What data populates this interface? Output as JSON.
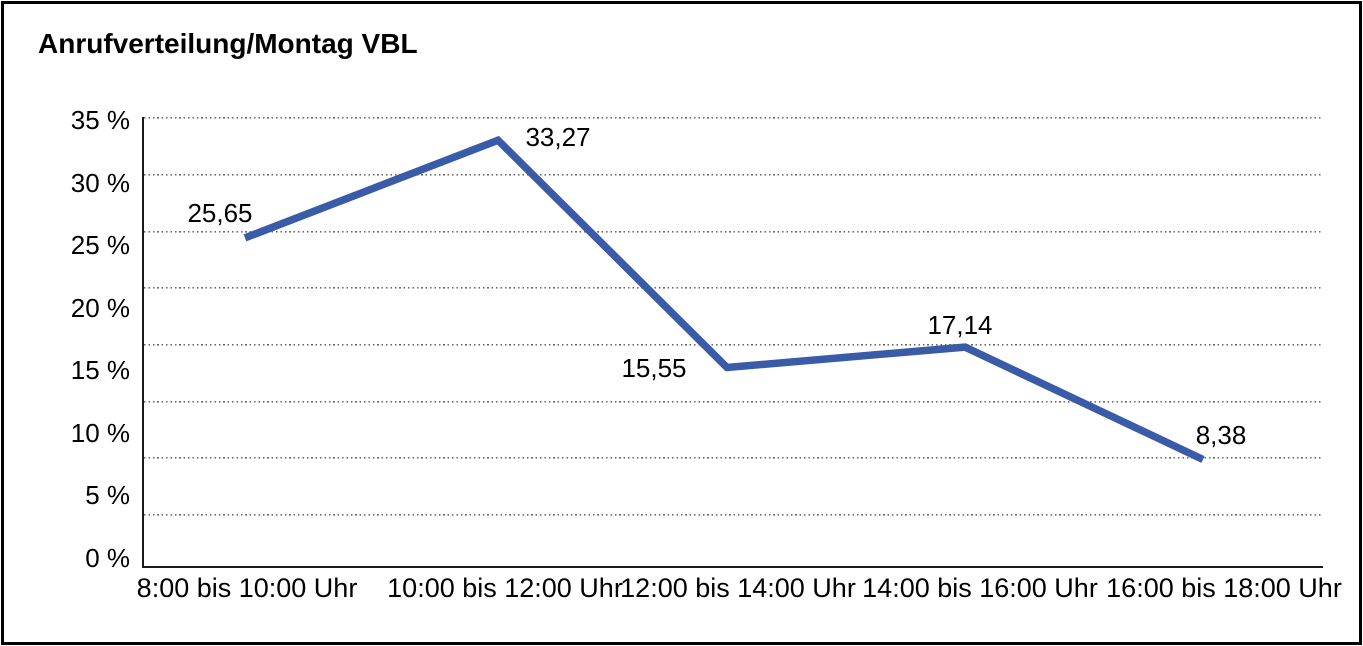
{
  "title": "Anrufverteilung/Montag VBL",
  "chart_data": {
    "type": "line",
    "title": "Anrufverteilung/Montag VBL",
    "categories": [
      "8:00 bis 10:00 Uhr",
      "10:00 bis 12:00 Uhr",
      "12:00 bis 14:00 Uhr",
      "14:00 bis 16:00 Uhr",
      "16:00 bis 18:00 Uhr"
    ],
    "values": [
      25.65,
      33.27,
      15.55,
      17.14,
      8.38
    ],
    "point_labels": [
      "25,65",
      "33,27",
      "15,55",
      "17,14",
      "8,38"
    ],
    "y_tick_labels": [
      "35 %",
      "30 %",
      "25 %",
      "20 %",
      "15 %",
      "10 %",
      "5 %",
      "0 %"
    ],
    "ylim": [
      0,
      35
    ],
    "y_step": 5,
    "xlabel": "",
    "ylabel": "",
    "legend": "none",
    "grid": "horizontal-dotted",
    "line_color": "#3A5BA8",
    "axis_color": "#1a1a1a"
  }
}
